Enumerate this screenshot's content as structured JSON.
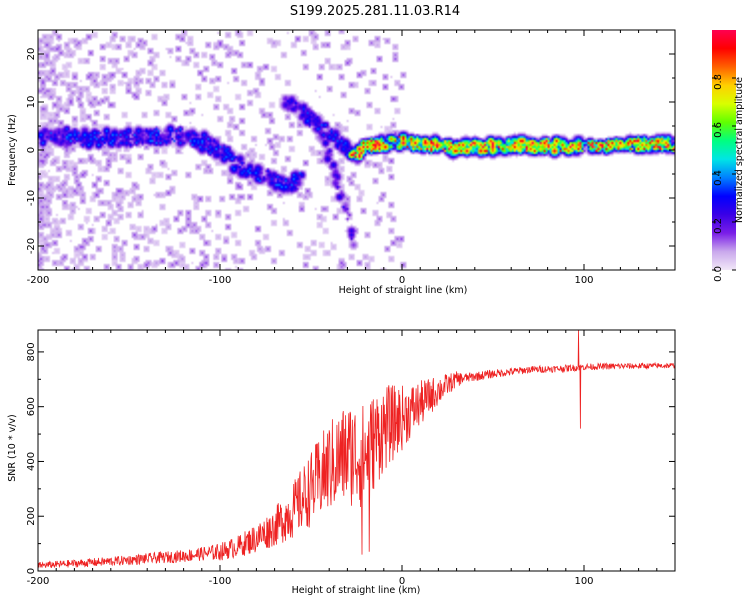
{
  "title": "S199.2025.281.11.03.R14",
  "colorbar": {
    "label": "Normalized spectral amplitude",
    "ticks": [
      0.0,
      0.2,
      0.4,
      0.6,
      0.8
    ],
    "tick_labels": [
      "0.0",
      "0.2",
      "0.4",
      "0.6",
      "0.8"
    ],
    "range": [
      0,
      1
    ],
    "colormap": [
      "#f2e8f8",
      "#c9a8ec",
      "#7a1ee8",
      "#3a00e6",
      "#0000ff",
      "#0080ff",
      "#00e5e5",
      "#00ff80",
      "#60ff00",
      "#d8ff00",
      "#ffd000",
      "#ff6000",
      "#ff0000",
      "#ff0050"
    ]
  },
  "chart_data": [
    {
      "type": "heatmap",
      "name": "spectrogram",
      "xlabel": "Height of straight line (km)",
      "ylabel": "Frequency (Hz)",
      "xlim": [
        -200,
        150
      ],
      "ylim": [
        -25,
        25
      ],
      "xticks": [
        -200,
        -100,
        0,
        100
      ],
      "xtick_labels": [
        "-200",
        "-100",
        "0",
        "100"
      ],
      "yticks": [
        -20,
        -10,
        0,
        10,
        20
      ],
      "ytick_labels": [
        "-20",
        "-10",
        "0",
        "10",
        "20"
      ],
      "ridges": [
        {
          "name": "main-signal",
          "points": [
            [
              -200,
              3
            ],
            [
              -180,
              3
            ],
            [
              -160,
              2.5
            ],
            [
              -140,
              3
            ],
            [
              -120,
              3
            ],
            [
              -110,
              2
            ],
            [
              -100,
              0
            ],
            [
              -90,
              -3
            ],
            [
              -80,
              -5
            ],
            [
              -70,
              -6
            ],
            [
              -65,
              -7
            ],
            [
              -55,
              -6
            ]
          ],
          "amplitude": 0.32,
          "width_hz": 3
        },
        {
          "name": "secondary-branch",
          "points": [
            [
              -65,
              11
            ],
            [
              -55,
              8
            ],
            [
              -45,
              4
            ],
            [
              -40,
              -2
            ],
            [
              -35,
              -8
            ],
            [
              -30,
              -14
            ],
            [
              -27,
              -19
            ]
          ],
          "amplitude": 0.25,
          "width_hz": 3
        },
        {
          "name": "upper-branch",
          "points": [
            [
              -55,
              8
            ],
            [
              -45,
              5
            ],
            [
              -35,
              2
            ],
            [
              -30,
              0
            ],
            [
              -25,
              -1
            ]
          ],
          "amplitude": 0.3,
          "width_hz": 3
        },
        {
          "name": "converged-carrier",
          "points": [
            [
              -28,
              -1
            ],
            [
              -20,
              1
            ],
            [
              -10,
              1.5
            ],
            [
              0,
              2
            ],
            [
              10,
              1.2
            ],
            [
              20,
              0.8
            ],
            [
              60,
              1
            ],
            [
              100,
              1
            ],
            [
              130,
              1.3
            ],
            [
              150,
              1.5
            ]
          ],
          "amplitude": 0.85,
          "width_hz": 2.2
        }
      ]
    },
    {
      "type": "line",
      "name": "snr",
      "xlabel": "Height of straight line (km)",
      "ylabel": "SNR (10 * v/v)",
      "xlim": [
        -200,
        150
      ],
      "ylim": [
        0,
        880
      ],
      "xticks": [
        -200,
        -100,
        0,
        100
      ],
      "xtick_labels": [
        "-200",
        "-100",
        "0",
        "100"
      ],
      "yticks": [
        0,
        200,
        400,
        600,
        800
      ],
      "ytick_labels": [
        "0",
        "200",
        "400",
        "600",
        "800"
      ],
      "color": "#ee2222",
      "envelope": [
        [
          -200,
          20
        ],
        [
          -160,
          35
        ],
        [
          -140,
          45
        ],
        [
          -120,
          55
        ],
        [
          -100,
          70
        ],
        [
          -90,
          90
        ],
        [
          -80,
          120
        ],
        [
          -70,
          160
        ],
        [
          -60,
          220
        ],
        [
          -50,
          300
        ],
        [
          -40,
          380
        ],
        [
          -30,
          430
        ],
        [
          -20,
          420
        ],
        [
          -15,
          480
        ],
        [
          -10,
          520
        ],
        [
          0,
          560
        ],
        [
          10,
          610
        ],
        [
          20,
          660
        ],
        [
          30,
          700
        ],
        [
          50,
          720
        ],
        [
          70,
          735
        ],
        [
          90,
          740
        ],
        [
          100,
          745
        ],
        [
          120,
          748
        ],
        [
          150,
          750
        ]
      ],
      "noise": [
        [
          -200,
          12
        ],
        [
          -150,
          18
        ],
        [
          -110,
          25
        ],
        [
          -90,
          40
        ],
        [
          -70,
          70
        ],
        [
          -55,
          120
        ],
        [
          -40,
          170
        ],
        [
          -25,
          200
        ],
        [
          -15,
          180
        ],
        [
          -5,
          140
        ],
        [
          5,
          100
        ],
        [
          15,
          70
        ],
        [
          25,
          40
        ],
        [
          35,
          18
        ],
        [
          60,
          14
        ],
        [
          100,
          12
        ],
        [
          150,
          10
        ]
      ],
      "spikes": [
        [
          97,
          880
        ],
        [
          98,
          520
        ],
        [
          -18,
          70
        ],
        [
          -22,
          60
        ]
      ]
    }
  ]
}
